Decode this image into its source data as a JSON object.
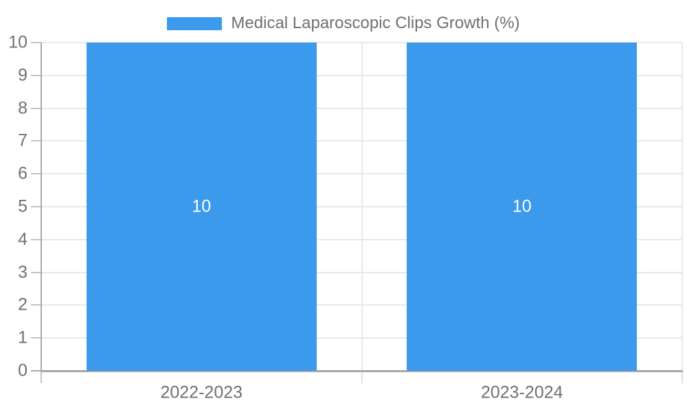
{
  "legend": {
    "label": "Medical Laparoscopic Clips Growth (%)"
  },
  "chart_data": {
    "type": "bar",
    "title": "Medical Laparoscopic Clips Growth (%)",
    "categories": [
      "2022-2023",
      "2023-2024"
    ],
    "series": [
      {
        "name": "Medical Laparoscopic Clips Growth (%)",
        "values": [
          10,
          10
        ]
      }
    ],
    "bar_value_labels": [
      "10",
      "10"
    ],
    "xlabel": "",
    "ylabel": "",
    "ylim": [
      0,
      10
    ],
    "yticks": [
      0,
      1,
      2,
      3,
      4,
      5,
      6,
      7,
      8,
      9,
      10
    ],
    "grid": true,
    "legend_position": "top-center",
    "colors": {
      "bar": "#3B9AEC",
      "text": "#707070",
      "value_label_text": "#FFFFFF",
      "axis_line": "#A8A8A8",
      "gridline": "#E8E8E8",
      "tick": "#C4C4C4",
      "boundary_tick": "#E0E0E0"
    }
  }
}
